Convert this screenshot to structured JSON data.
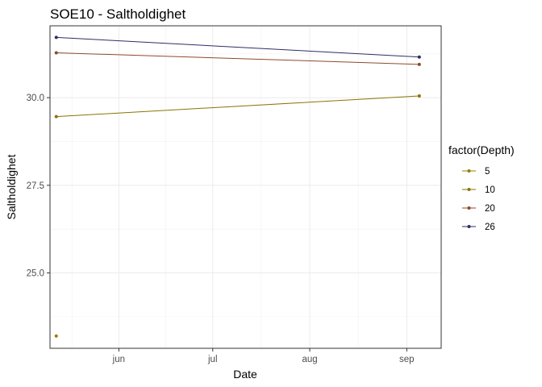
{
  "chart_data": {
    "type": "line",
    "title": "SOE10  -  Saltholdighet",
    "xlabel": "Date",
    "ylabel": "Saltholdighet",
    "legend_title": "factor(Depth)",
    "legend_position": "right",
    "grid": true,
    "x_ticks": [
      {
        "label": "jun",
        "date": "2021-06-01"
      },
      {
        "label": "jul",
        "date": "2021-07-01"
      },
      {
        "label": "aug",
        "date": "2021-08-01"
      },
      {
        "label": "sep",
        "date": "2021-09-01"
      }
    ],
    "xlim": [
      "2021-05-10",
      "2021-09-12"
    ],
    "y_ticks": [
      25.0,
      27.5,
      30.0
    ],
    "y_tick_labels": [
      "25.0",
      "27.5",
      "30.0"
    ],
    "ylim": [
      22.85,
      32.05
    ],
    "series": [
      {
        "name": "5",
        "color": "#9a7d00",
        "points": [
          {
            "x": "2021-05-12",
            "y": 23.2
          }
        ]
      },
      {
        "name": "10",
        "color": "#8a7400",
        "points": [
          {
            "x": "2021-05-12",
            "y": 29.46
          },
          {
            "x": "2021-09-05",
            "y": 30.05
          }
        ]
      },
      {
        "name": "20",
        "color": "#8c4a2a",
        "points": [
          {
            "x": "2021-05-12",
            "y": 31.28
          },
          {
            "x": "2021-09-05",
            "y": 30.95
          }
        ]
      },
      {
        "name": "26",
        "color": "#2e2e66",
        "points": [
          {
            "x": "2021-05-12",
            "y": 31.72
          },
          {
            "x": "2021-09-05",
            "y": 31.16
          }
        ]
      }
    ]
  }
}
